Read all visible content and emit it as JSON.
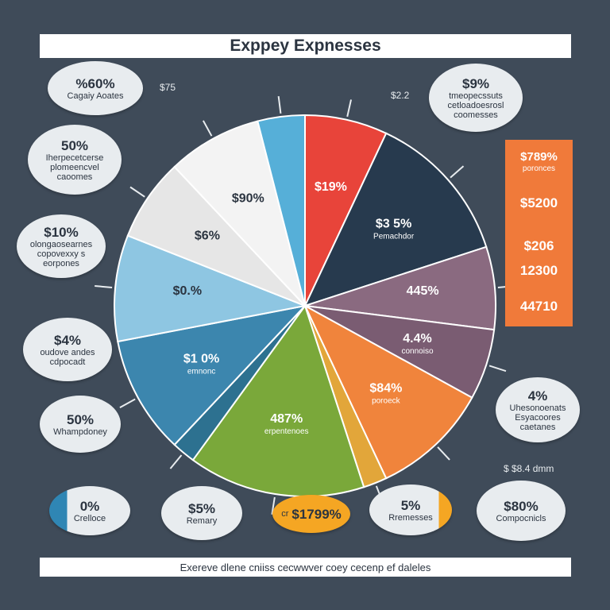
{
  "title": "Exppey Expnesses",
  "footer": "Exereve dlene cniiss cecwwver coey cecenp ef daleles",
  "colors": {
    "background": "#3f4b59",
    "accent_orange": "#f07a3a",
    "callout_fill": "#e8ecef"
  },
  "chart_data": {
    "type": "pie",
    "title": "Exppey Expnesses",
    "slices": [
      {
        "label": "$19%",
        "sublabel": "",
        "value": 7,
        "color": "#e8443a"
      },
      {
        "label": "$3 5%",
        "sublabel": "Pemachdor",
        "value": 13,
        "color": "#273a4e"
      },
      {
        "label": "445%",
        "sublabel": "",
        "value": 7,
        "color": "#8a6a80"
      },
      {
        "label": "4.4%",
        "sublabel": "connoiso",
        "value": 6,
        "color": "#7a5c72"
      },
      {
        "label": "$84%",
        "sublabel": "poroeck",
        "value": 10,
        "color": "#f0843c"
      },
      {
        "label": "",
        "sublabel": "",
        "value": 2,
        "color": "#e2a63a"
      },
      {
        "label": "487%",
        "sublabel": "erpentenoes",
        "value": 15,
        "color": "#7aa83a"
      },
      {
        "label": "",
        "sublabel": "",
        "value": 2,
        "color": "#2d7190"
      },
      {
        "label": "$1 0%",
        "sublabel": "emnonc",
        "value": 10,
        "color": "#3c86ae"
      },
      {
        "label": "$0.%",
        "sublabel": "",
        "value": 9,
        "color": "#8ec6e2"
      },
      {
        "label": "$6%",
        "sublabel": "",
        "value": 7,
        "color": "#e6e6e6"
      },
      {
        "label": "$90%",
        "sublabel": "",
        "value": 8,
        "color": "#f3f3f3"
      },
      {
        "label": "",
        "sublabel": "",
        "value": 4,
        "color": "#56afd8"
      }
    ]
  },
  "callouts": [
    {
      "value": "%60%",
      "desc": "Cagaiy Aoates"
    },
    {
      "value": "50%",
      "desc": "Iherpecetcerse plomeencvel caoomes"
    },
    {
      "value": "$10%",
      "desc": "olongaosearnes copovexxy s eorpones"
    },
    {
      "value": "$4%",
      "desc": "oudove andes cdpocadt"
    },
    {
      "value": "50%",
      "desc": "Whampdoney"
    },
    {
      "value": "0%",
      "desc": "Crelloce"
    },
    {
      "value": "$5%",
      "desc": "Remary"
    },
    {
      "value": "$1799%",
      "desc": "cr"
    },
    {
      "value": "5%",
      "desc": "Rremesses"
    },
    {
      "value": "$80%",
      "desc": "Compocnicls"
    },
    {
      "value": "4%",
      "desc": "Uhesonoenats Esyacoores caetanes"
    },
    {
      "value": "$9%",
      "desc": "tmeopecssuts cetloadoesrosl coomesses"
    }
  ],
  "floating_labels": [
    "$75",
    "$2.2",
    "$ $8.4 dmm"
  ],
  "side_panel": {
    "items": [
      "$789%",
      "poronces",
      "$5200",
      "$206",
      "12300",
      "44710"
    ]
  }
}
